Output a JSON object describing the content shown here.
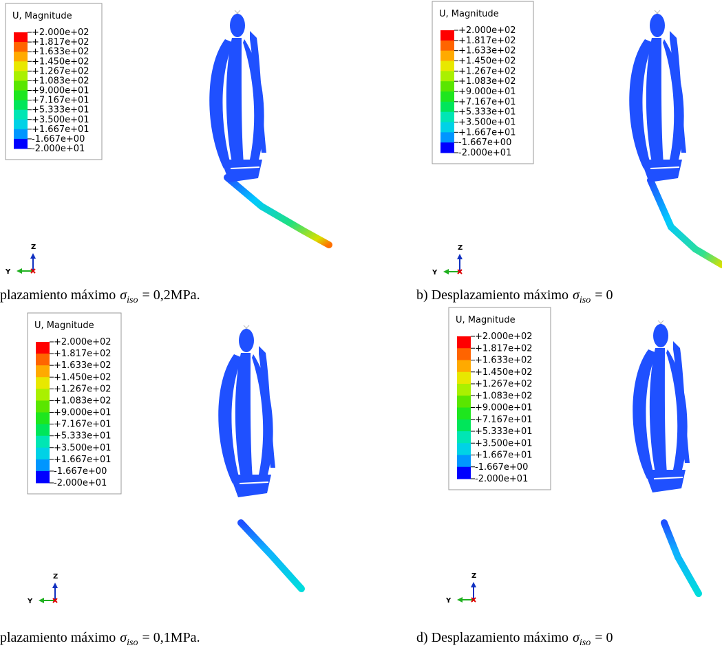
{
  "legend_colors": [
    "#ff0000",
    "#ff6400",
    "#ffaa00",
    "#e8e800",
    "#aaf000",
    "#5ae600",
    "#1ee61e",
    "#00e65a",
    "#00e6b4",
    "#00d2e6",
    "#0096ff",
    "#0050ff",
    "#0000ff"
  ],
  "panels": [
    {
      "legend": {
        "title": "U, Magnitude",
        "labels": [
          "+2.000e+02",
          "+1.817e+02",
          "+1.633e+02",
          "+1.450e+02",
          "+1.267e+02",
          "+1.083e+02",
          "+9.000e+01",
          "+7.167e+01",
          "+5.333e+01",
          "+3.500e+01",
          "+1.667e+01",
          "-1.667e+00",
          "-2.000e+01"
        ]
      },
      "triad": {
        "z": "Z",
        "y": "Y"
      },
      "caption": {
        "text": "plazamiento máximo",
        "symbol": "σ",
        "subscript": "iso",
        "rest": "= 0,2MPa."
      }
    },
    {
      "legend": {
        "title": "U, Magnitude",
        "labels": [
          "+2.000e+02",
          "+1.817e+02",
          "+1.633e+02",
          "+1.450e+02",
          "+1.267e+02",
          "+1.083e+02",
          "+9.000e+01",
          "+7.167e+01",
          "+5.333e+01",
          "+3.500e+01",
          "+1.667e+01",
          "-1.667e+00",
          "-2.000e+01"
        ]
      },
      "triad": {
        "z": "Z",
        "y": "Y"
      },
      "caption": {
        "text": "b) Desplazamiento máximo",
        "symbol": "σ",
        "subscript": "iso",
        "rest": "= 0"
      }
    },
    {
      "legend": {
        "title": "U, Magnitude",
        "labels": [
          "+2.000e+02",
          "+1.817e+02",
          "+1.633e+02",
          "+1.450e+02",
          "+1.267e+02",
          "+1.083e+02",
          "+9.000e+01",
          "+7.167e+01",
          "+5.333e+01",
          "+3.500e+01",
          "+1.667e+01",
          "-1.667e+00",
          "-2.000e+01"
        ]
      },
      "triad": {
        "z": "Z",
        "y": "Y"
      },
      "caption": {
        "text": "plazamiento máximo",
        "symbol": "σ",
        "subscript": "iso",
        "rest": "= 0,1MPa."
      }
    },
    {
      "legend": {
        "title": "U, Magnitude",
        "labels": [
          "+2.000e+02",
          "+1.817e+02",
          "+1.633e+02",
          "+1.450e+02",
          "+1.267e+02",
          "+1.083e+02",
          "+9.000e+01",
          "+7.167e+01",
          "+5.333e+01",
          "+3.500e+01",
          "+1.667e+01",
          "-1.667e+00",
          "-2.000e+01"
        ]
      },
      "triad": {
        "z": "Z",
        "y": "Y"
      },
      "caption": {
        "text": "d) Desplazamiento máximo",
        "symbol": "σ",
        "subscript": "iso",
        "rest": "= 0"
      }
    }
  ]
}
